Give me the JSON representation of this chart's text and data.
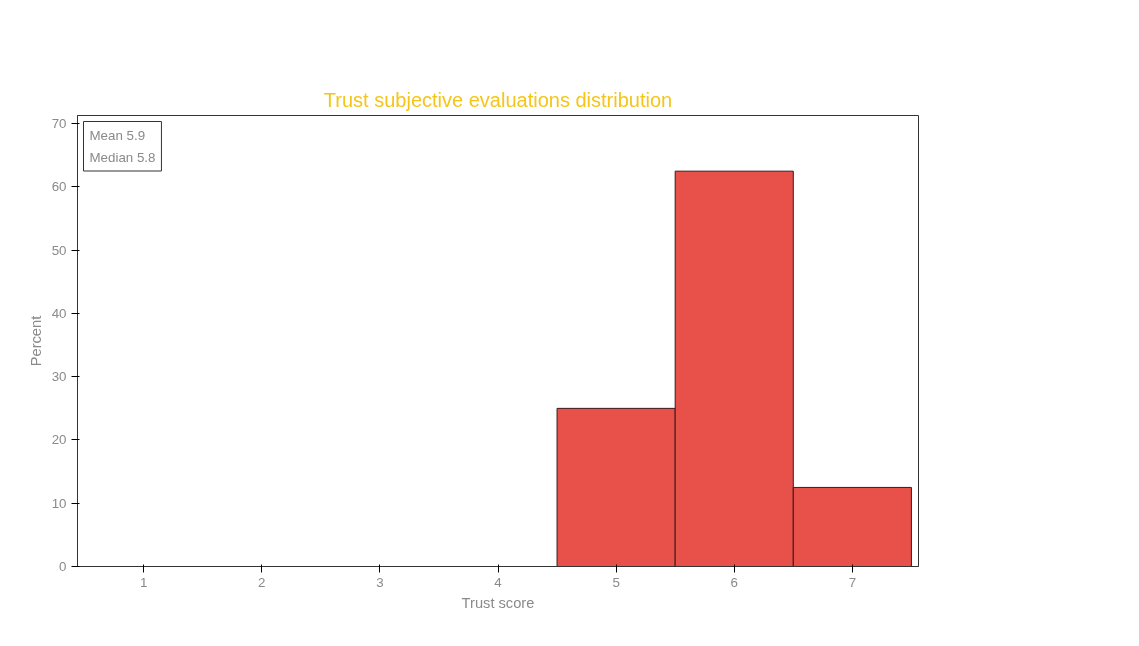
{
  "chart_data": {
    "type": "histogram",
    "title": "Trust subjective evaluations distribution",
    "xlabel": "Trust score",
    "ylabel": "Percent",
    "bins": [
      0.5,
      1.5,
      2.5,
      3.5,
      4.5,
      5.5,
      6.5,
      7.5
    ],
    "values": [
      0,
      0,
      0,
      0,
      25,
      62.5,
      12.5
    ],
    "color": "#e8504a",
    "xlim": [
      0.44,
      7.56
    ],
    "xticks": [
      1,
      2,
      3,
      4,
      5,
      6,
      7
    ],
    "ylim": [
      0,
      71.3
    ],
    "yticks": [
      0,
      10,
      20,
      30,
      40,
      50,
      60,
      70
    ],
    "grid": false,
    "annotations": [
      "Mean 5.9",
      "Median 5.8"
    ]
  }
}
